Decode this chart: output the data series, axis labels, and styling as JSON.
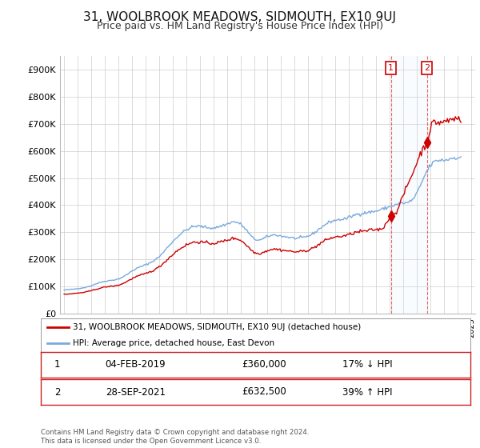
{
  "title": "31, WOOLBROOK MEADOWS, SIDMOUTH, EX10 9UJ",
  "subtitle": "Price paid vs. HM Land Registry's House Price Index (HPI)",
  "title_fontsize": 11,
  "subtitle_fontsize": 9,
  "background_color": "#ffffff",
  "plot_bg_color": "#ffffff",
  "grid_color": "#cccccc",
  "ylim": [
    0,
    950000
  ],
  "yticks": [
    0,
    100000,
    200000,
    300000,
    400000,
    500000,
    600000,
    700000,
    800000,
    900000
  ],
  "ytick_labels": [
    "£0",
    "£100K",
    "£200K",
    "£300K",
    "£400K",
    "£500K",
    "£600K",
    "£700K",
    "£800K",
    "£900K"
  ],
  "xlim_start": 1994.7,
  "xlim_end": 2025.3,
  "hpi_color": "#7aaadd",
  "price_color": "#cc0000",
  "dashed_line_color": "#dd4444",
  "shade_color": "#ddeeff",
  "marker1_year": 2019.083,
  "marker2_year": 2021.75,
  "sale1_price": 360000,
  "sale2_price": 632500,
  "legend_entry1": "31, WOOLBROOK MEADOWS, SIDMOUTH, EX10 9UJ (detached house)",
  "legend_entry2": "HPI: Average price, detached house, East Devon",
  "table_row1_num": "1",
  "table_row1_date": "04-FEB-2019",
  "table_row1_price": "£360,000",
  "table_row1_hpi": "17% ↓ HPI",
  "table_row2_num": "2",
  "table_row2_date": "28-SEP-2021",
  "table_row2_price": "£632,500",
  "table_row2_hpi": "39% ↑ HPI",
  "footer": "Contains HM Land Registry data © Crown copyright and database right 2024.\nThis data is licensed under the Open Government Licence v3.0."
}
